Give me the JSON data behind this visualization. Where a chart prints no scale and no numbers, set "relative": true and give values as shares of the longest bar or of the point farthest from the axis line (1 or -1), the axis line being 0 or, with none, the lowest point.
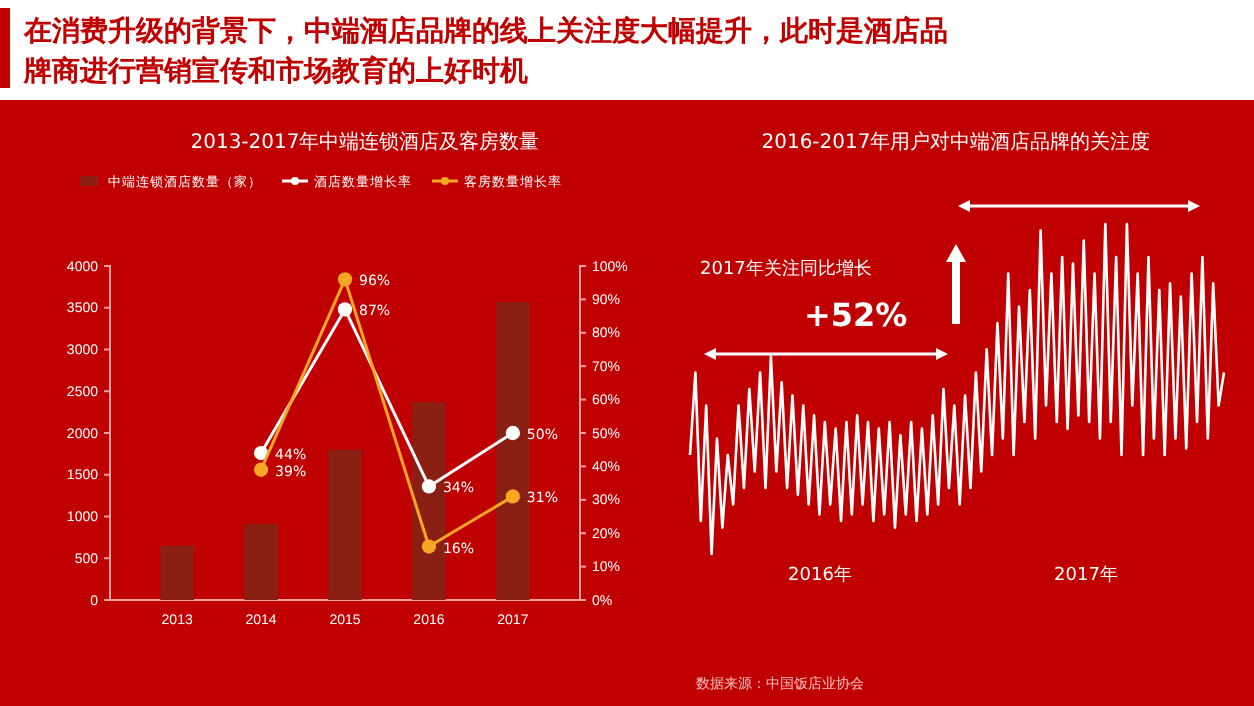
{
  "chart_data": [
    {
      "type": "bar",
      "title": "2013-2017年中端连锁酒店及客房数量",
      "categories": [
        "2013",
        "2014",
        "2015",
        "2016",
        "2017"
      ],
      "series": [
        {
          "name": "中端连锁酒店数量（家）",
          "type": "bar",
          "color": "#8a1f14",
          "values": [
            650,
            910,
            1800,
            2370,
            3570
          ]
        },
        {
          "name": "酒店数量增长率",
          "type": "line",
          "axis": "y2",
          "color": "#ffffff",
          "values": [
            null,
            44,
            87,
            34,
            50
          ],
          "value_labels": [
            null,
            "44%",
            "87%",
            "34%",
            "50%"
          ]
        },
        {
          "name": "客房数量增长率",
          "type": "line",
          "axis": "y2",
          "color": "#f5a623",
          "values": [
            null,
            39,
            96,
            16,
            31
          ],
          "value_labels": [
            null,
            "39%",
            "96%",
            "16%",
            "31%"
          ]
        }
      ],
      "ylim": [
        0,
        4000
      ],
      "yticks": [
        0,
        500,
        1000,
        1500,
        2000,
        2500,
        3000,
        3500,
        4000
      ],
      "y2lim": [
        0,
        100
      ],
      "y2ticks": [
        {
          "value": 0,
          "label": "0%"
        },
        {
          "value": 10,
          "label": "10%"
        },
        {
          "value": 20,
          "label": "20%"
        },
        {
          "value": 30,
          "label": "30%"
        },
        {
          "value": 40,
          "label": "40%"
        },
        {
          "value": 50,
          "label": "50%"
        },
        {
          "value": 60,
          "label": "60%"
        },
        {
          "value": 70,
          "label": "70%"
        },
        {
          "value": 80,
          "label": "80%"
        },
        {
          "value": 90,
          "label": "90%"
        },
        {
          "value": 100,
          "label": "100%"
        }
      ],
      "legend": "top",
      "marker": "circle",
      "grid": false,
      "annotations": [
        "在消费升级的背景下，中端酒店品牌的线上关注度大幅提升，此时是酒店品牌商进行营销宣传和市场教育的上好时机",
        "数据来源：中国饭店业协会"
      ]
    },
    {
      "type": "line",
      "title": "2016-2017年用户对中端酒店品牌的关注度",
      "relative": true,
      "tick_labels": false,
      "grid": false,
      "categories": [
        null,
        null,
        null,
        null,
        null,
        null,
        null,
        null,
        null,
        null,
        null,
        null,
        null,
        null,
        null,
        null,
        null,
        null,
        null,
        null,
        null,
        null,
        null,
        null,
        null,
        null,
        null,
        null,
        null,
        null,
        null,
        null,
        null,
        null,
        null,
        null,
        null,
        null,
        null,
        null,
        null,
        null,
        null,
        null,
        null,
        null,
        null,
        null,
        null,
        null,
        null,
        null,
        null,
        null,
        null,
        null,
        null,
        null,
        null,
        null,
        null,
        null,
        null,
        null,
        null,
        null,
        null,
        null,
        null,
        null,
        null,
        null,
        null,
        null,
        null,
        null,
        null,
        null,
        null,
        null,
        null,
        null,
        null,
        null,
        null,
        null,
        null,
        null,
        null,
        null,
        null,
        null,
        null,
        null,
        null,
        null,
        null,
        null,
        null,
        null
      ],
      "series": [
        {
          "color": "#ffffff",
          "values": [
            0.3,
            0.55,
            0.1,
            0.45,
            0.0,
            0.35,
            0.08,
            0.3,
            0.15,
            0.45,
            0.2,
            0.5,
            0.25,
            0.55,
            0.2,
            0.6,
            0.25,
            0.52,
            0.2,
            0.48,
            0.18,
            0.45,
            0.15,
            0.42,
            0.12,
            0.4,
            0.15,
            0.38,
            0.1,
            0.4,
            0.12,
            0.42,
            0.15,
            0.4,
            0.1,
            0.38,
            0.12,
            0.4,
            0.08,
            0.36,
            0.12,
            0.4,
            0.1,
            0.38,
            0.12,
            0.42,
            0.15,
            0.5,
            0.2,
            0.45,
            0.15,
            0.48,
            0.2,
            0.55,
            0.25,
            0.62,
            0.3,
            0.7,
            0.35,
            0.85,
            0.3,
            0.75,
            0.4,
            0.8,
            0.35,
            0.98,
            0.45,
            0.85,
            0.4,
            0.9,
            0.38,
            0.88,
            0.42,
            0.95,
            0.4,
            0.85,
            0.35,
            1.0,
            0.4,
            0.9,
            0.3,
            1.0,
            0.45,
            0.85,
            0.3,
            0.9,
            0.35,
            0.8,
            0.3,
            0.82,
            0.35,
            0.78,
            0.32,
            0.85,
            0.4,
            0.9,
            0.35,
            0.82,
            0.45,
            0.55
          ]
        }
      ],
      "annotations": [
        "2017年关注同比增长",
        "+52%",
        "2016年",
        "2017年"
      ]
    }
  ]
}
